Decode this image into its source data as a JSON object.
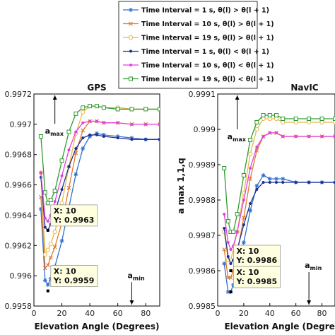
{
  "legend": {
    "entries": [
      {
        "text": "Time Interval = 1 s, θ(l) > θ(l + 1)",
        "color": "#2f6fd0",
        "marker": "star"
      },
      {
        "text": "Time Interval = 10 s, θ(l) > θ(l + 1)",
        "color": "#e07a2a",
        "marker": "cross"
      },
      {
        "text": "Time Interval = 19 s, θ(l) > θ(l + 1)",
        "color": "#e8b84a",
        "marker": "circle"
      },
      {
        "text": "Time Interval = 1 s, θ(l) < θ(l + 1)",
        "color": "#1f2f8f",
        "marker": "dot"
      },
      {
        "text": "Time Interval = 10 s, θ(l) < θ(l + 1)",
        "color": "#e040e0",
        "marker": "dot"
      },
      {
        "text": "Time Interval = 19 s, θ(l) < θ(l + 1)",
        "color": "#2e9a2e",
        "marker": "square"
      }
    ]
  },
  "chart_data": [
    {
      "type": "line",
      "title": "GPS",
      "xlabel": "Elevation Angle (Degrees)",
      "ylabel": "",
      "xlim": [
        0,
        90
      ],
      "ylim": [
        0.9958,
        0.9972
      ],
      "xticks": [
        "0",
        "20",
        "40",
        "60",
        "80"
      ],
      "yticks": [
        "0.9958",
        "0.996",
        "0.9962",
        "0.9964",
        "0.9966",
        "0.9968",
        "0.997",
        "0.9972"
      ],
      "series": [
        {
          "name": "Time Interval = 1 s, θ(l) > θ(l + 1)",
          "x": [
            5,
            8,
            10,
            12,
            15,
            20,
            25,
            30,
            35,
            40,
            45,
            50,
            60,
            70,
            80,
            90
          ],
          "y": [
            0.99644,
            0.99597,
            0.99594,
            0.99598,
            0.99606,
            0.99623,
            0.99645,
            0.99667,
            0.99684,
            0.99692,
            0.99694,
            0.99693,
            0.99692,
            0.99691,
            0.9969,
            0.9969
          ]
        },
        {
          "name": "Time Interval = 10 s, θ(l) > θ(l + 1)",
          "x": [
            5,
            8,
            10,
            12,
            15,
            20,
            25,
            30,
            35,
            40,
            45,
            50,
            60,
            70,
            80,
            90
          ],
          "y": [
            0.99652,
            0.99605,
            0.99607,
            0.99612,
            0.99619,
            0.99635,
            0.99658,
            0.99681,
            0.99696,
            0.99702,
            0.99702,
            0.99701,
            0.99701,
            0.997,
            0.997,
            0.997
          ]
        },
        {
          "name": "Time Interval = 19 s, θ(l) > θ(l + 1)",
          "x": [
            5,
            8,
            10,
            12,
            15,
            20,
            25,
            30,
            35,
            40,
            45,
            50,
            60,
            70,
            80,
            90
          ],
          "y": [
            0.99668,
            0.99614,
            0.99617,
            0.99621,
            0.99629,
            0.99648,
            0.99672,
            0.99694,
            0.99708,
            0.99712,
            0.99712,
            0.99711,
            0.99711,
            0.9971,
            0.9971,
            0.9971
          ]
        },
        {
          "name": "Time Interval = 1 s, θ(l) < θ(l + 1)",
          "x": [
            5,
            8,
            10,
            12,
            15,
            20,
            25,
            30,
            35,
            40,
            45,
            50,
            60,
            70,
            80,
            90
          ],
          "y": [
            0.99665,
            0.99632,
            0.9963,
            0.99634,
            0.99642,
            0.99657,
            0.99672,
            0.99684,
            0.99691,
            0.99693,
            0.99693,
            0.99692,
            0.99691,
            0.9969,
            0.9969,
            0.9969
          ]
        },
        {
          "name": "Time Interval = 10 s, θ(l) < θ(l + 1)",
          "x": [
            5,
            8,
            10,
            12,
            15,
            20,
            25,
            30,
            35,
            40,
            45,
            50,
            60,
            70,
            80,
            90
          ],
          "y": [
            0.99668,
            0.99638,
            0.99636,
            0.9964,
            0.99649,
            0.99666,
            0.99683,
            0.99695,
            0.99701,
            0.99702,
            0.99702,
            0.99701,
            0.99701,
            0.997,
            0.997,
            0.997
          ]
        },
        {
          "name": "Time Interval = 19 s, θ(l) < θ(l + 1)",
          "x": [
            5,
            8,
            10,
            12,
            15,
            20,
            25,
            30,
            35,
            40,
            45,
            50,
            60,
            70,
            80,
            90
          ],
          "y": [
            0.99692,
            0.99655,
            0.99648,
            0.9965,
            0.99656,
            0.99676,
            0.99695,
            0.99707,
            0.99711,
            0.99712,
            0.99712,
            0.99711,
            0.9971,
            0.9971,
            0.9971,
            0.9971
          ]
        }
      ],
      "annotations": [
        {
          "text": "a",
          "sub": "max",
          "x": 15,
          "y": 0.99705
        },
        {
          "text": "a",
          "sub": "min",
          "x": 70,
          "y": 0.99592
        },
        {
          "lines": [
            "X: 10",
            "Y: 0.9963"
          ],
          "x": 10,
          "y": 0.9963
        },
        {
          "lines": [
            "X: 10",
            "Y: 0.9959"
          ],
          "x": 10,
          "y": 0.9959
        }
      ]
    },
    {
      "type": "line",
      "title": "NavIC",
      "xlabel": "Elevation Angle (Degrees)",
      "ylabel": "a max 1,1,q",
      "xlim": [
        0,
        90
      ],
      "ylim": [
        0.9985,
        0.9991
      ],
      "xticks": [
        "0",
        "20",
        "40",
        "60",
        "80"
      ],
      "yticks": [
        "0.9985",
        "0.9986",
        "0.9987",
        "0.9988",
        "0.9989",
        "0.999",
        "0.9991"
      ],
      "series": [
        {
          "name": "Time Interval = 1 s, θ(l) > θ(l + 1)",
          "x": [
            5,
            8,
            10,
            12,
            15,
            20,
            25,
            30,
            35,
            40,
            45,
            50,
            60,
            70,
            80,
            90
          ],
          "y": [
            0.99862,
            0.99854,
            0.99854,
            0.99856,
            0.9986,
            0.99868,
            0.99877,
            0.99884,
            0.99887,
            0.99886,
            0.99886,
            0.99886,
            0.99885,
            0.99885,
            0.99885,
            0.99885
          ]
        },
        {
          "name": "Time Interval = 10 s, θ(l) > θ(l + 1)",
          "x": [
            5,
            8,
            10,
            12,
            15,
            20,
            25,
            30,
            35,
            40,
            45,
            50,
            60,
            70,
            80,
            90
          ],
          "y": [
            0.99866,
            0.99858,
            0.99858,
            0.9986,
            0.99865,
            0.99875,
            0.99886,
            0.99894,
            0.99898,
            0.99899,
            0.99899,
            0.99898,
            0.99898,
            0.99898,
            0.99898,
            0.99898
          ]
        },
        {
          "name": "Time Interval = 19 s, θ(l) > θ(l + 1)",
          "x": [
            5,
            8,
            10,
            12,
            15,
            20,
            25,
            30,
            35,
            40,
            45,
            50,
            60,
            70,
            80,
            90
          ],
          "y": [
            0.99871,
            0.99863,
            0.99863,
            0.99866,
            0.99871,
            0.99882,
            0.99893,
            0.999,
            0.99903,
            0.99903,
            0.99903,
            0.99902,
            0.99902,
            0.99902,
            0.99902,
            0.99902
          ]
        },
        {
          "name": "Time Interval = 1 s, θ(l) < θ(l + 1)",
          "x": [
            5,
            8,
            10,
            12,
            15,
            20,
            25,
            30,
            35,
            40,
            45,
            50,
            60,
            70,
            80,
            90
          ],
          "y": [
            0.99872,
            0.99864,
            0.99862,
            0.99863,
            0.99866,
            0.99873,
            0.99879,
            0.99883,
            0.99885,
            0.99885,
            0.99885,
            0.99885,
            0.99885,
            0.99885,
            0.99885,
            0.99885
          ]
        },
        {
          "name": "Time Interval = 10 s, θ(l) < θ(l + 1)",
          "x": [
            5,
            8,
            10,
            12,
            15,
            20,
            25,
            30,
            35,
            40,
            45,
            50,
            60,
            70,
            80,
            90
          ],
          "y": [
            0.99876,
            0.99868,
            0.99866,
            0.99867,
            0.99871,
            0.9988,
            0.99889,
            0.99895,
            0.99898,
            0.99899,
            0.99899,
            0.99898,
            0.99898,
            0.99898,
            0.99898,
            0.99898
          ]
        },
        {
          "name": "Time Interval = 19 s, θ(l) < θ(l + 1)",
          "x": [
            5,
            8,
            10,
            12,
            15,
            20,
            25,
            30,
            35,
            40,
            45,
            50,
            60,
            70,
            80,
            90
          ],
          "y": [
            0.99889,
            0.99874,
            0.99871,
            0.99871,
            0.99876,
            0.99887,
            0.99897,
            0.99902,
            0.99904,
            0.99904,
            0.99904,
            0.99903,
            0.99903,
            0.99903,
            0.99903,
            0.99903
          ]
        }
      ],
      "annotations": [
        {
          "text": "a",
          "sub": "max",
          "x": 15,
          "y": 0.99902
        },
        {
          "text": "a",
          "sub": "min",
          "x": 70,
          "y": 0.99858
        },
        {
          "lines": [
            "X: 10",
            "Y: 0.9986"
          ],
          "x": 10,
          "y": 0.9986
        },
        {
          "lines": [
            "X: 10",
            "Y: 0.9985"
          ],
          "x": 10,
          "y": 0.99854
        }
      ]
    }
  ]
}
